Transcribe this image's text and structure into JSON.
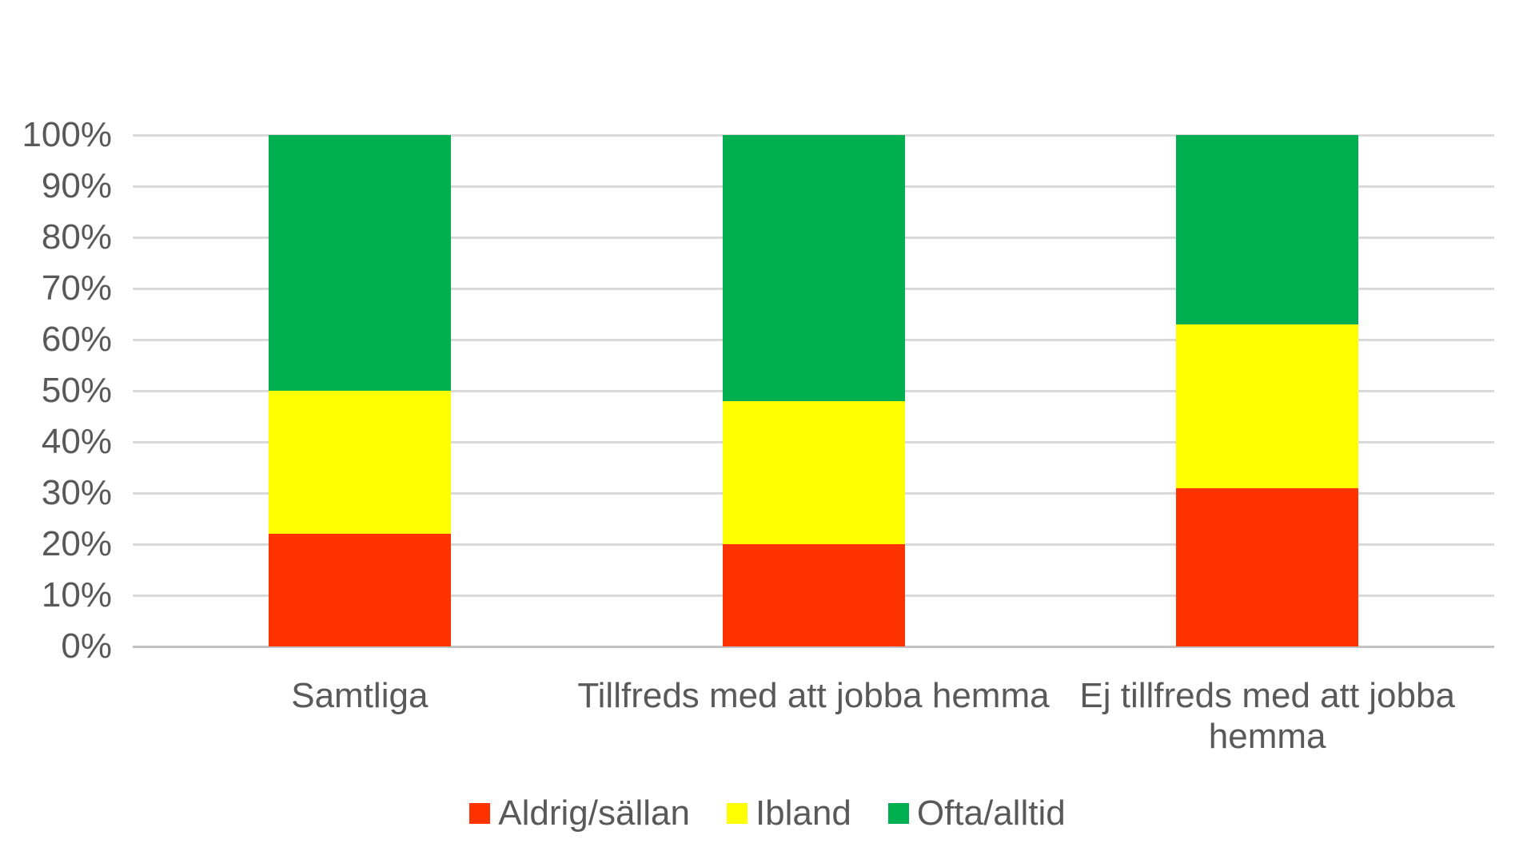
{
  "chart_data": {
    "type": "bar",
    "variant": "stacked-100-percent",
    "title": "",
    "categories": [
      "Samtliga",
      "Tillfreds med att jobba hemma",
      "Ej tillfreds med att jobba hemma"
    ],
    "series": [
      {
        "name": "Aldrig/sällan",
        "color": "#FF3300",
        "values": [
          22,
          20,
          31
        ]
      },
      {
        "name": "Ibland",
        "color": "#FFFF00",
        "values": [
          28,
          28,
          32
        ]
      },
      {
        "name": "Ofta/alltid",
        "color": "#00B050",
        "values": [
          50,
          52,
          37
        ]
      }
    ],
    "xlabel": "",
    "ylabel": "",
    "y_axis": {
      "min": 0,
      "max": 100,
      "tick_step": 10,
      "ticks": [
        "0%",
        "10%",
        "20%",
        "30%",
        "40%",
        "50%",
        "60%",
        "70%",
        "80%",
        "90%",
        "100%"
      ],
      "grid": true
    },
    "legend_position": "bottom"
  },
  "styles": {
    "background": "#FFFFFF",
    "grid_color": "#D9D9D9",
    "axis_line_color": "#C2C2C2",
    "text_color": "#595959"
  }
}
